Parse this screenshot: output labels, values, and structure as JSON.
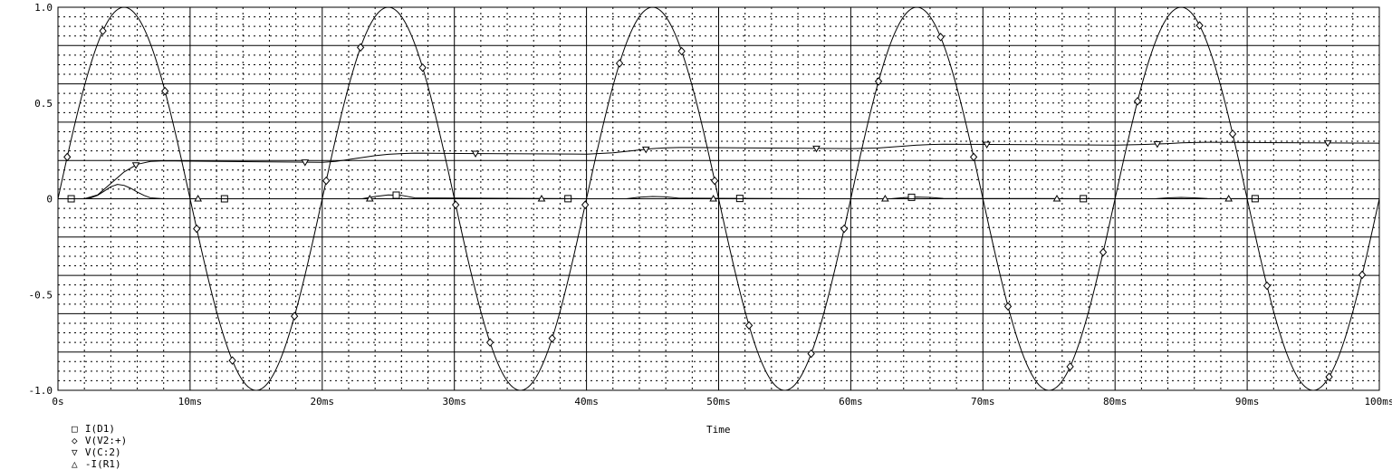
{
  "chart_data": {
    "type": "line",
    "xlabel": "Time",
    "xlim": [
      0,
      100
    ],
    "ylim": [
      -1.0,
      1.0
    ],
    "grid": true,
    "x_ticks": [
      {
        "v": 0,
        "label": "0s"
      },
      {
        "v": 10,
        "label": "10ms"
      },
      {
        "v": 20,
        "label": "20ms"
      },
      {
        "v": 30,
        "label": "30ms"
      },
      {
        "v": 40,
        "label": "40ms"
      },
      {
        "v": 50,
        "label": "50ms"
      },
      {
        "v": 60,
        "label": "60ms"
      },
      {
        "v": 70,
        "label": "70ms"
      },
      {
        "v": 80,
        "label": "80ms"
      },
      {
        "v": 90,
        "label": "90ms"
      },
      {
        "v": 100,
        "label": "100ms"
      }
    ],
    "y_ticks": [
      {
        "v": 1.0,
        "label": "1.0"
      },
      {
        "v": 0.5,
        "label": "0.5"
      },
      {
        "v": 0,
        "label": "0"
      },
      {
        "v": -0.5,
        "label": "-0.5"
      },
      {
        "v": -1.0,
        "label": "-1.0"
      }
    ],
    "legend_position": "bottom-left",
    "series": [
      {
        "name": "I(D1)",
        "symbol": "□",
        "x": [
          0,
          2,
          2.5,
          3,
          3.5,
          4,
          4.5,
          5,
          5.5,
          6,
          6.5,
          7,
          8,
          20,
          23,
          24,
          25,
          26,
          27,
          40,
          43,
          44,
          45,
          46,
          47,
          60,
          63,
          64,
          65,
          66,
          67,
          80,
          83,
          84,
          85,
          86,
          87,
          100
        ],
        "y": [
          0,
          0,
          0.005,
          0.018,
          0.04,
          0.063,
          0.075,
          0.07,
          0.055,
          0.035,
          0.018,
          0.005,
          0,
          0,
          0,
          0.012,
          0.02,
          0.018,
          0.005,
          0,
          0,
          0.008,
          0.012,
          0.01,
          0.003,
          0,
          0,
          0.006,
          0.009,
          0.007,
          0.002,
          0,
          0,
          0.005,
          0.007,
          0.005,
          0.001,
          0
        ],
        "markers_x": [
          1,
          12.6,
          25.6,
          38.6,
          51.6,
          64.6,
          77.6,
          90.6
        ]
      },
      {
        "name": "V(V2:+)",
        "symbol": "◇",
        "x": [
          0,
          2.5,
          5,
          7.5,
          10,
          12.5,
          15,
          17.5,
          20,
          22.5,
          25,
          27.5,
          30,
          32.5,
          35,
          37.5,
          40,
          42.5,
          45,
          47.5,
          50,
          52.5,
          55,
          57.5,
          60,
          62.5,
          65,
          67.5,
          70,
          72.5,
          75,
          77.5,
          80,
          82.5,
          85,
          87.5,
          90,
          92.5,
          95,
          97.5,
          100
        ],
        "y": [
          0,
          0.707,
          1,
          0.707,
          0,
          -0.707,
          -1,
          -0.707,
          0,
          0.707,
          1,
          0.707,
          0,
          -0.707,
          -1,
          -0.707,
          0,
          0.707,
          1,
          0.707,
          0,
          -0.707,
          -1,
          -0.707,
          0,
          0.707,
          1,
          0.707,
          0,
          -0.707,
          -1,
          -0.707,
          0,
          0.707,
          1,
          0.707,
          0,
          -0.707,
          -1,
          -0.707,
          0
        ],
        "markers_x": [
          0.7,
          3.4,
          8.1,
          10.5,
          13.2,
          17.9,
          20.3,
          22.9,
          27.6,
          30.1,
          32.7,
          37.4,
          39.9,
          42.5,
          47.2,
          49.7,
          52.3,
          57,
          59.5,
          62.1,
          66.8,
          69.3,
          71.9,
          76.6,
          79.1,
          81.7,
          86.4,
          88.9,
          91.5,
          96.2,
          98.7
        ]
      },
      {
        "name": "V(C:2)",
        "symbol": "▽",
        "x": [
          0,
          2,
          3,
          4,
          5,
          6,
          7,
          8,
          20,
          21,
          22,
          23,
          24,
          25,
          26,
          27,
          40,
          42,
          44,
          45,
          46,
          47,
          60,
          62,
          64,
          65,
          66,
          67,
          80,
          82,
          84,
          85,
          86,
          87,
          100
        ],
        "y": [
          0,
          0,
          0.02,
          0.08,
          0.14,
          0.18,
          0.195,
          0.198,
          0.19,
          0.195,
          0.205,
          0.215,
          0.225,
          0.232,
          0.236,
          0.238,
          0.233,
          0.24,
          0.255,
          0.262,
          0.266,
          0.268,
          0.262,
          0.265,
          0.275,
          0.28,
          0.283,
          0.285,
          0.28,
          0.283,
          0.288,
          0.292,
          0.294,
          0.295,
          0.29
        ],
        "markers_x": [
          5.9,
          18.7,
          31.6,
          44.5,
          57.4,
          70.3,
          83.2,
          96.1
        ]
      },
      {
        "name": "-I(R1)",
        "symbol": "△",
        "x": [
          0,
          100
        ],
        "y": [
          0,
          0
        ],
        "markers_x": [
          10.6,
          23.6,
          36.6,
          49.6,
          62.6,
          75.6,
          88.6
        ]
      }
    ]
  }
}
